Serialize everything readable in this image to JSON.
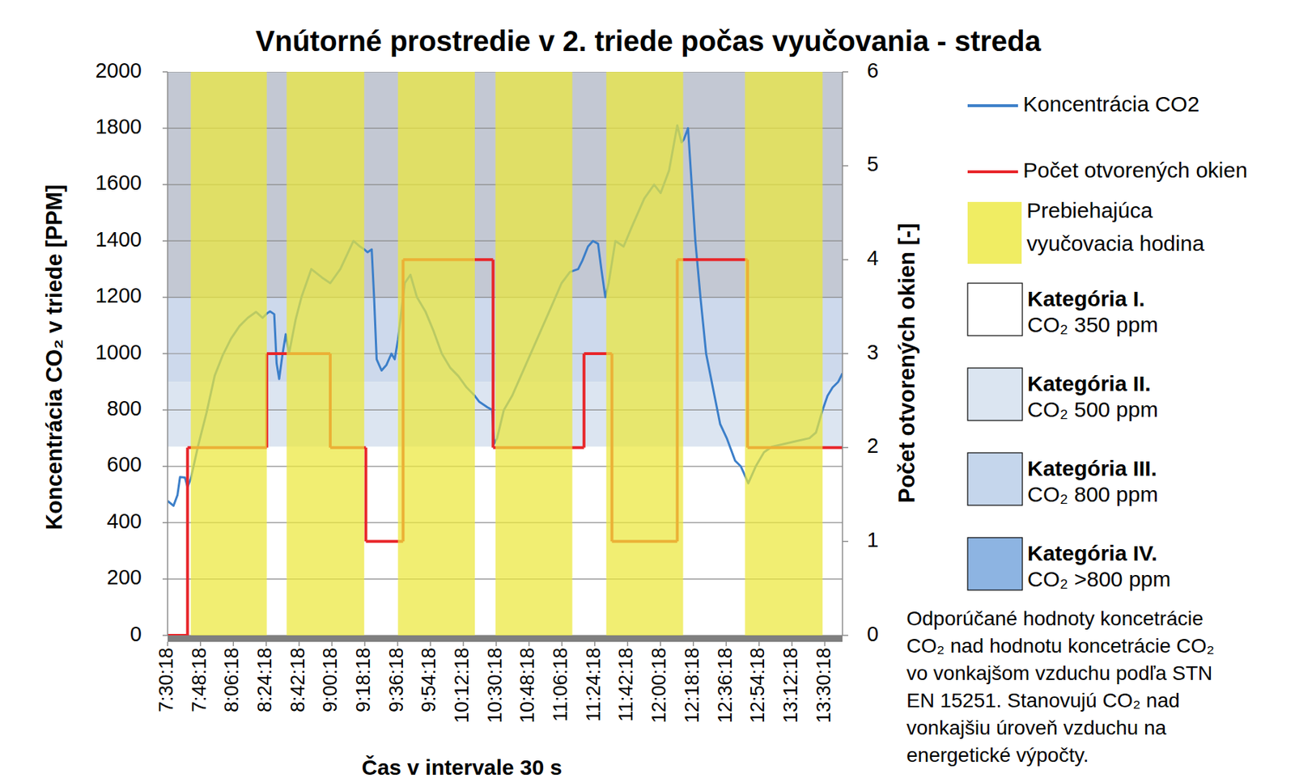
{
  "chart_data": {
    "type": "line",
    "title": "Vnútorné prostredie v 2. triede počas vyučovania - streda",
    "x_label": "Čas v intervale 30 s",
    "y_label": "Koncentrácia CO₂ v triede [PPM]",
    "y2_label": "Počet otvorených okien [-]",
    "xlim": [
      450.3,
      820.0
    ],
    "xticks": [
      {
        "value": 450.3,
        "label": "7:30:18"
      },
      {
        "value": 468.3,
        "label": "7:48:18"
      },
      {
        "value": 486.3,
        "label": "8:06:18"
      },
      {
        "value": 504.3,
        "label": "8:24:18"
      },
      {
        "value": 522.3,
        "label": "8:42:18"
      },
      {
        "value": 540.3,
        "label": "9:00:18"
      },
      {
        "value": 558.3,
        "label": "9:18:18"
      },
      {
        "value": 576.3,
        "label": "9:36:18"
      },
      {
        "value": 594.3,
        "label": "9:54:18"
      },
      {
        "value": 612.3,
        "label": "10:12:18"
      },
      {
        "value": 630.3,
        "label": "10:30:18"
      },
      {
        "value": 648.3,
        "label": "10:48:18"
      },
      {
        "value": 666.3,
        "label": "11:06:18"
      },
      {
        "value": 684.3,
        "label": "11:24:18"
      },
      {
        "value": 702.3,
        "label": "11:42:18"
      },
      {
        "value": 720.3,
        "label": "12:00:18"
      },
      {
        "value": 738.3,
        "label": "12:18:18"
      },
      {
        "value": 756.3,
        "label": "12:36:18"
      },
      {
        "value": 774.3,
        "label": "12:54:18"
      },
      {
        "value": 792.3,
        "label": "13:12:18"
      },
      {
        "value": 810.3,
        "label": "13:30:18"
      }
    ],
    "ylim": [
      0,
      2000
    ],
    "yticks": [
      0,
      200,
      400,
      600,
      800,
      1000,
      1200,
      1400,
      1600,
      1800,
      2000
    ],
    "y2lim": [
      0,
      6
    ],
    "y2ticks": [
      0,
      1,
      2,
      3,
      4,
      5,
      6
    ],
    "grid": true,
    "series": [
      {
        "name": "Koncentrácia CO2",
        "color": "#3c7fc9",
        "x": [
          450.3,
          453.5,
          455.7,
          457.1,
          459.8,
          461.2,
          463.0,
          467.0,
          471.6,
          476.1,
          480.6,
          485.1,
          489.7,
          494.2,
          498.7,
          502.3,
          504.6,
          506.4,
          508.7,
          510.0,
          511.4,
          513.2,
          515.0,
          516.8,
          520.4,
          523.6,
          529.0,
          534.9,
          539.4,
          544.9,
          548.5,
          552.1,
          555.7,
          558.0,
          559.8,
          562.1,
          563.4,
          564.8,
          567.5,
          570.2,
          572.9,
          574.7,
          576.5,
          580.2,
          583.3,
          586.9,
          591.5,
          596.0,
          600.5,
          605.1,
          609.6,
          614.1,
          618.6,
          620.9,
          625.4,
          628.1,
          629.1,
          630.8,
          634.5,
          639.0,
          645.8,
          652.6,
          659.4,
          666.1,
          670.7,
          675.2,
          677.5,
          680.6,
          683.3,
          686.1,
          687.9,
          690.1,
          691.9,
          695.6,
          700.1,
          704.6,
          711.4,
          716.8,
          720.4,
          725.0,
          729.5,
          731.8,
          733.1,
          735.4,
          739.4,
          742.2,
          745.3,
          749.9,
          753.0,
          756.6,
          761.2,
          764.3,
          765.7,
          768.4,
          772.5,
          777.0,
          781.5,
          788.3,
          795.1,
          801.9,
          805.5,
          809.1,
          811.8,
          814.6,
          817.7,
          820.0
        ],
        "values": [
          477,
          460,
          498,
          562,
          560,
          527,
          556,
          673,
          790,
          922,
          996,
          1054,
          1098,
          1127,
          1148,
          1127,
          1142,
          1150,
          1140,
          966,
          910,
          996,
          1069,
          1000,
          1120,
          1200,
          1300,
          1270,
          1250,
          1300,
          1350,
          1400,
          1380,
          1370,
          1360,
          1370,
          1200,
          980,
          940,
          960,
          1000,
          980,
          1050,
          1250,
          1280,
          1200,
          1150,
          1080,
          1000,
          950,
          920,
          880,
          850,
          830,
          810,
          800,
          680,
          700,
          800,
          850,
          950,
          1050,
          1150,
          1250,
          1290,
          1300,
          1330,
          1380,
          1400,
          1390,
          1300,
          1200,
          1250,
          1400,
          1380,
          1450,
          1550,
          1600,
          1570,
          1650,
          1810,
          1750,
          1760,
          1800,
          1400,
          1200,
          1000,
          850,
          750,
          700,
          620,
          600,
          580,
          540,
          600,
          650,
          670,
          680,
          690,
          700,
          720,
          800,
          850,
          880,
          900,
          930
        ]
      },
      {
        "name": "Počet otvorených okien",
        "color": "#e8262a",
        "axis": "y2",
        "line_style": "step",
        "x": [
          450.3,
          461.2,
          504.6,
          539.4,
          558.9,
          579.3,
          628.6,
          678.4,
          693.7,
          729.5,
          768.0
        ],
        "values": [
          0,
          2,
          3,
          2,
          1,
          4,
          2,
          3,
          1,
          4,
          2
        ]
      }
    ],
    "lessons": {
      "name": "Prebiehajúca vyučovacia hodina",
      "color": "#ece83c",
      "intervals": [
        [
          463.0,
          504.6
        ],
        [
          515.5,
          558.0
        ],
        [
          576.5,
          618.6
        ],
        [
          629.9,
          672.0
        ],
        [
          690.6,
          732.7
        ],
        [
          766.6,
          809.1
        ]
      ]
    },
    "bands": [
      {
        "name": "Kategória I.",
        "label": "CO₂ 350 ppm",
        "from": 0,
        "to": 670,
        "color": "#ffffff",
        "swatch": "#ffffff"
      },
      {
        "name": "Kategória II.",
        "label": "CO₂ 500 ppm",
        "from": 670,
        "to": 900,
        "color": "#dce5f1",
        "swatch": "#dbe5f1"
      },
      {
        "name": "Kategória III.",
        "label": "CO₂ 800 ppm",
        "from": 900,
        "to": 1200,
        "color": "#cdd9ec",
        "swatch": "#c5d6ec"
      },
      {
        "name": "Kategória IV.",
        "label": "CO₂ >800 ppm",
        "from": 1200,
        "to": 2000,
        "color": "#c3c8d3",
        "swatch": "#8db4e2"
      }
    ],
    "note": [
      "Odporúčané hodnoty koncetrácie",
      "CO₂ nad hodnotu koncetrácie CO₂",
      "vo vonkajšom vzduchu podľa STN",
      "EN 15251. Stanovujú CO₂ nad",
      "vonkajšiu úroveň vzduchu na",
      "energetické výpočty."
    ]
  }
}
